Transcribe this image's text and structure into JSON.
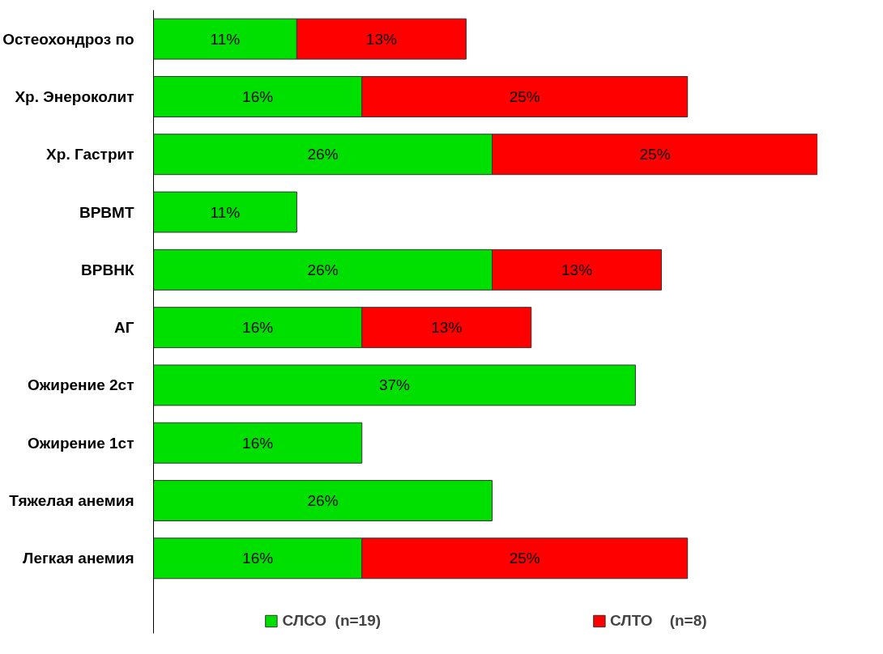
{
  "chart_data": {
    "type": "bar",
    "orientation": "horizontal",
    "stacked": true,
    "legend": "bottom",
    "grid": false,
    "categories": [
      "Остеохондроз по",
      "Хр. Энероколит",
      "Хр. Гастрит",
      "ВРВМТ",
      "ВРВНК",
      "АГ",
      "Ожирение 2ст",
      "Ожирение 1ст",
      "Тяжелая анемия",
      "Легкая анемия"
    ],
    "series": [
      {
        "name": "СЛСО  (n=19)",
        "color": "#00e000",
        "values": [
          11,
          16,
          26,
          11,
          26,
          16,
          37,
          16,
          26,
          16
        ],
        "value_labels": [
          "11%",
          "16%",
          "26%",
          "11%",
          "26%",
          "16%",
          "37%",
          "16%",
          "26%",
          "16%"
        ]
      },
      {
        "name": "СЛТО    (n=8)",
        "color": "#ff0000",
        "values": [
          13,
          25,
          25,
          null,
          13,
          13,
          null,
          null,
          null,
          25
        ],
        "value_labels": [
          "13%",
          "25%",
          "25%",
          null,
          "13%",
          "13%",
          null,
          null,
          null,
          "25%"
        ]
      }
    ]
  }
}
